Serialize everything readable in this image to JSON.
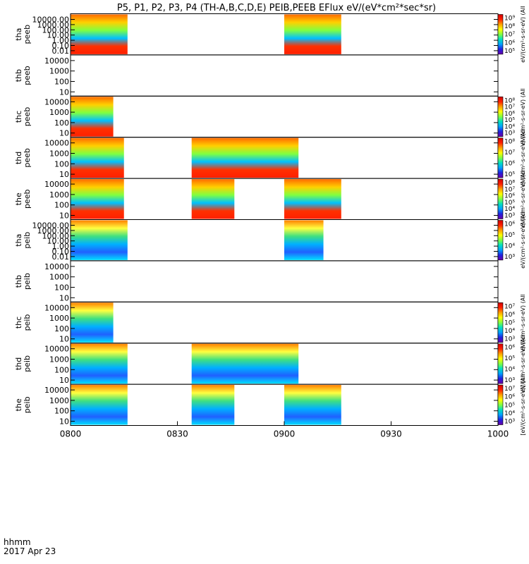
{
  "chart_data": {
    "type": "heatmap",
    "title": "P5, P1, P2, P3, P4 (TH-A,B,C,D,E) PEIB,PEEB EFlux eV/(eV*cm²*sec*sr)",
    "x_label": "hhmm",
    "date_label": "2017 Apr 23",
    "x_range": [
      "0800",
      "1000"
    ],
    "x_ticks": [
      "0800",
      "0830",
      "0900",
      "0930",
      "1000"
    ],
    "y_scale": "log",
    "colormap": [
      "#6a00a8",
      "#2020e0",
      "#00a0ff",
      "#00e0c0",
      "#80ff40",
      "#ffff00",
      "#ffa000",
      "#ff2000",
      "#d00000"
    ],
    "panels": [
      {
        "id": "tha-peeb",
        "label_top": "tha",
        "label_bottom": "peeb",
        "y_ticks": [
          "10000.00",
          "1000.00",
          "100.00",
          "10.00",
          "1.00",
          "0.10",
          "0.01"
        ],
        "cbar_ticks": [
          "10⁹",
          "10⁸",
          "10⁷",
          "10⁶",
          "10⁵"
        ],
        "cbar_label": "eV/(cm²-s-sr-eV) (All",
        "data_intervals": [
          [
            "0800",
            "0816"
          ],
          [
            "0900",
            "0916"
          ]
        ]
      },
      {
        "id": "thb-peeb",
        "label_top": "thb",
        "label_bottom": "peeb",
        "y_ticks": [
          "10000",
          "1000",
          "100",
          "10"
        ],
        "cbar_ticks": [],
        "cbar_label": "",
        "data_intervals": []
      },
      {
        "id": "thc-peeb",
        "label_top": "thc",
        "label_bottom": "peeb",
        "y_ticks": [
          "10000",
          "1000",
          "100",
          "10"
        ],
        "cbar_ticks": [
          "10⁸",
          "10⁷",
          "10⁶",
          "10⁵",
          "10⁴",
          "10³"
        ],
        "cbar_label": "eV/(cm²-s-sr-eV) (All",
        "data_intervals": [
          [
            "0800",
            "0812"
          ]
        ]
      },
      {
        "id": "thd-peeb",
        "label_top": "thd",
        "label_bottom": "peeb",
        "y_ticks": [
          "10000",
          "1000",
          "100",
          "10"
        ],
        "cbar_ticks": [
          "10⁸",
          "10⁷",
          "10⁶",
          "10⁵"
        ],
        "cbar_label": "eV/(cm²-s-sr-eV) (All",
        "data_intervals": [
          [
            "0800",
            "0815"
          ],
          [
            "0834",
            "0904"
          ]
        ]
      },
      {
        "id": "the-peeb",
        "label_top": "the",
        "label_bottom": "peeb",
        "y_ticks": [
          "10000",
          "1000",
          "100",
          "10"
        ],
        "cbar_ticks": [
          "10⁸",
          "10⁷",
          "10⁶",
          "10⁵",
          "10⁴",
          "10³"
        ],
        "cbar_label": "eV/(cm²-s-sr-eV) (All",
        "data_intervals": [
          [
            "0800",
            "0815"
          ],
          [
            "0834",
            "0846"
          ],
          [
            "0900",
            "0916"
          ]
        ]
      },
      {
        "id": "tha-peib",
        "label_top": "tha",
        "label_bottom": "peib",
        "y_ticks": [
          "10000.00",
          "1000.00",
          "100.00",
          "10.00",
          "1.00",
          "0.10",
          "0.01"
        ],
        "cbar_ticks": [
          "10⁶",
          "10⁵",
          "10⁴",
          "10³"
        ],
        "cbar_label": "eV/(cm²-s-sr-eV) (All",
        "data_intervals": [
          [
            "0800",
            "0816"
          ],
          [
            "0900",
            "0911"
          ]
        ]
      },
      {
        "id": "thb-peib",
        "label_top": "thb",
        "label_bottom": "peib",
        "y_ticks": [
          "10000",
          "1000",
          "100",
          "10"
        ],
        "cbar_ticks": [],
        "cbar_label": "",
        "data_intervals": []
      },
      {
        "id": "thc-peib",
        "label_top": "thc",
        "label_bottom": "peib",
        "y_ticks": [
          "10000",
          "1000",
          "100",
          "10"
        ],
        "cbar_ticks": [
          "10⁷",
          "10⁶",
          "10⁵",
          "10⁴",
          "10³"
        ],
        "cbar_label": "eV/(cm²-s-sr-eV) (All",
        "data_intervals": [
          [
            "0800",
            "0812"
          ]
        ]
      },
      {
        "id": "thd-peib",
        "label_top": "thd",
        "label_bottom": "peib",
        "y_ticks": [
          "10000",
          "1000",
          "100",
          "10"
        ],
        "cbar_ticks": [
          "10⁶",
          "10⁵",
          "10⁴",
          "10³"
        ],
        "cbar_label": "eV/(cm²-s-sr-eV) (All",
        "data_intervals": [
          [
            "0800",
            "0816"
          ],
          [
            "0834",
            "0904"
          ]
        ]
      },
      {
        "id": "the-peib",
        "label_top": "the",
        "label_bottom": "peib",
        "y_ticks": [
          "10000",
          "1000",
          "100",
          "10"
        ],
        "cbar_ticks": [
          "10⁷",
          "10⁶",
          "10⁵",
          "10⁴",
          "10³"
        ],
        "cbar_label": "[eV/(cm²-s-sr-eV)] (All",
        "data_intervals": [
          [
            "0800",
            "0816"
          ],
          [
            "0834",
            "0846"
          ],
          [
            "0900",
            "0916"
          ]
        ]
      }
    ]
  }
}
